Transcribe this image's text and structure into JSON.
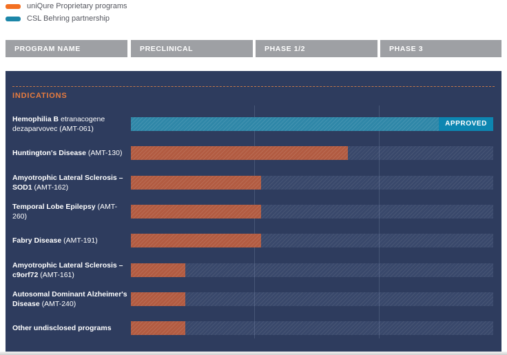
{
  "legend": {
    "items": [
      {
        "key": "proprietary",
        "label": "uniQure Proprietary programs",
        "color": "#f36f21"
      },
      {
        "key": "partnership",
        "label": "CSL Behring partnership",
        "color": "#1c86a8"
      }
    ]
  },
  "header": {
    "columns": [
      {
        "label": "PROGRAM NAME"
      },
      {
        "label": "PRECLINICAL"
      },
      {
        "label": "PHASE 1/2"
      },
      {
        "label": "PHASE 3"
      }
    ]
  },
  "panel": {
    "section_label": "INDICATIONS",
    "approved_label": "APPROVED"
  },
  "colors": {
    "panel_background": "#2e3c5e",
    "bar_proprietary": "#b25b41",
    "bar_partnership": "#2f87a8",
    "approved_chip": "#0d86b1",
    "header_gray": "#9ea0a4",
    "indications_orange": "#e87c3e"
  },
  "chart_data": {
    "type": "bar",
    "orientation": "horizontal",
    "title": "uniQure gene therapy pipeline by indication and development phase",
    "x_axis": {
      "stages": [
        "Preclinical",
        "Phase 1/2",
        "Phase 3"
      ],
      "range": [
        0,
        3
      ],
      "note": "stage_value: 0=start of Preclinical, 1=end Preclinical, 2=end Phase 1/2, 3=end Phase 3 (approved)"
    },
    "legend_position": "top-left",
    "grid": "vertical phase boundary lines",
    "rows": [
      {
        "name_bold": "Hemophilia B",
        "name_regular": "etranacogene dezaparvovec (AMT-061)",
        "series": "partnership",
        "stage": "Approved",
        "stage_value": 3.0,
        "width_pct": 100,
        "approved": true
      },
      {
        "name_bold": "Huntington's Disease",
        "name_regular": "(AMT-130)",
        "series": "proprietary",
        "stage": "Phase 1/2",
        "stage_value": 1.75,
        "width_pct": 59.9,
        "approved": false
      },
      {
        "name_bold": "Amyotrophic Lateral Sclerosis – SOD1",
        "name_regular": "(AMT-162)",
        "series": "proprietary",
        "stage": "Entering Phase 1/2",
        "stage_value": 1.06,
        "width_pct": 35.9,
        "approved": false
      },
      {
        "name_bold": "Temporal Lobe Epilepsy",
        "name_regular": "(AMT-260)",
        "series": "proprietary",
        "stage": "Entering Phase 1/2",
        "stage_value": 1.06,
        "width_pct": 35.9,
        "approved": false
      },
      {
        "name_bold": "Fabry Disease",
        "name_regular": "(AMT-191)",
        "series": "proprietary",
        "stage": "Entering Phase 1/2",
        "stage_value": 1.06,
        "width_pct": 35.9,
        "approved": false
      },
      {
        "name_bold": "Amyotrophic Lateral Sclerosis – c9orf72",
        "name_regular": "(AMT-161)",
        "series": "proprietary",
        "stage": "Preclinical",
        "stage_value": 0.44,
        "width_pct": 15.0,
        "approved": false
      },
      {
        "name_bold": "Autosomal Dominant Alzheimer's Disease",
        "name_regular": "(AMT-240)",
        "series": "proprietary",
        "stage": "Preclinical",
        "stage_value": 0.44,
        "width_pct": 15.0,
        "approved": false
      },
      {
        "name_bold": "Other undisclosed programs",
        "name_regular": "",
        "series": "proprietary",
        "stage": "Preclinical",
        "stage_value": 0.44,
        "width_pct": 15.0,
        "approved": false
      }
    ]
  }
}
